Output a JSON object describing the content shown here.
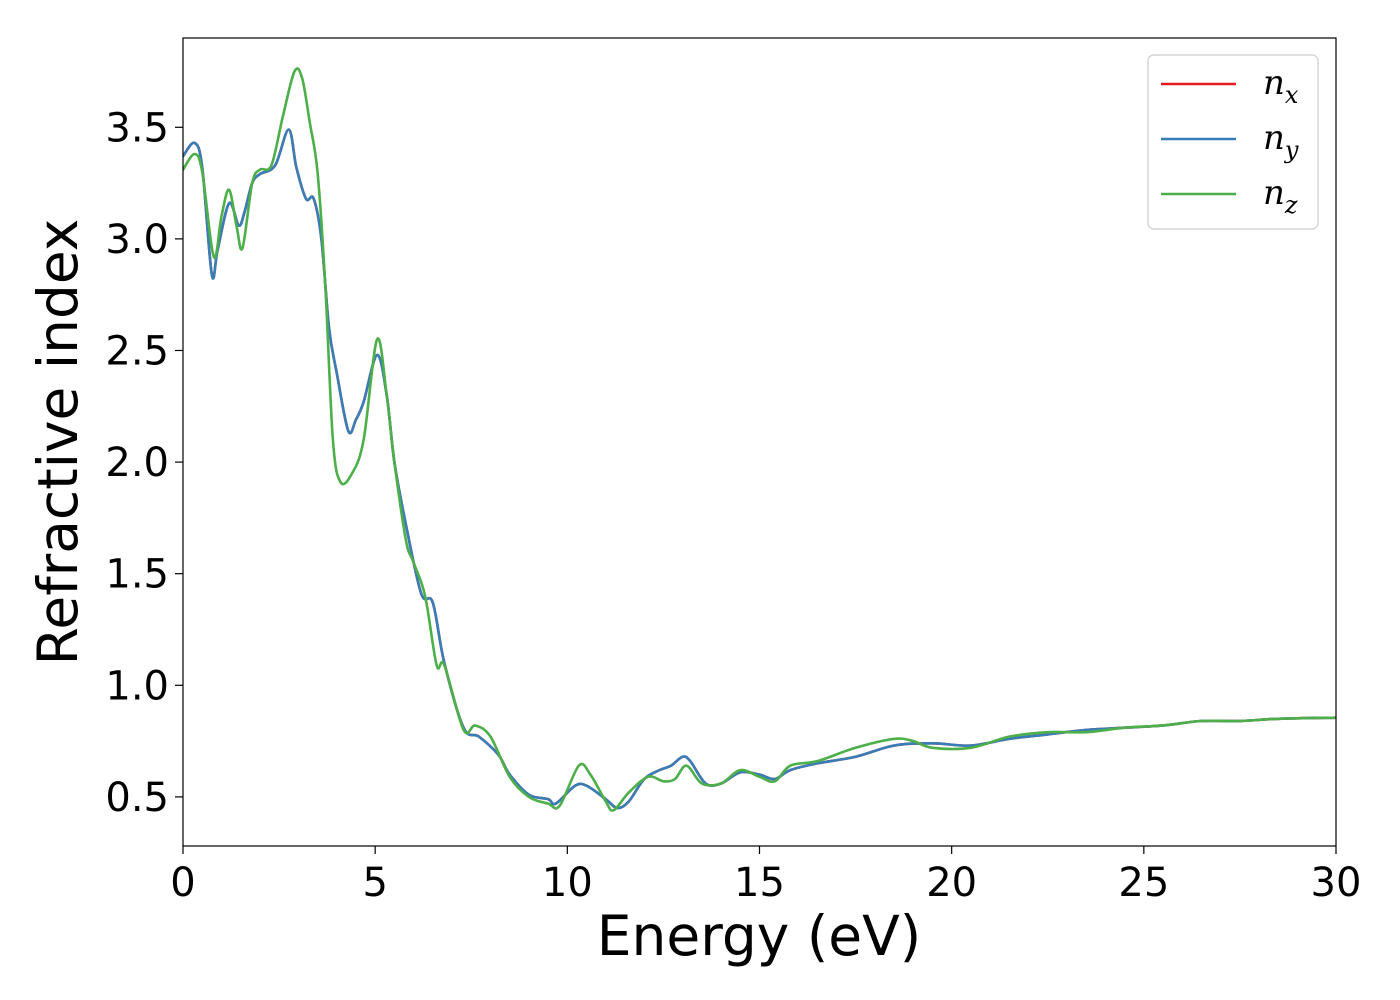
{
  "chart_data": {
    "type": "line",
    "xlabel": "Energy (eV)",
    "ylabel": "Refractive index",
    "xlim": [
      0,
      30
    ],
    "ylim": [
      0.28,
      3.9
    ],
    "xticks": [
      0,
      5,
      10,
      15,
      20,
      25,
      30
    ],
    "xtick_labels": [
      "0",
      "5",
      "10",
      "15",
      "20",
      "25",
      "30"
    ],
    "yticks": [
      0.5,
      1.0,
      1.5,
      2.0,
      2.5,
      3.0,
      3.5
    ],
    "ytick_labels": [
      "0.5",
      "1.0",
      "1.5",
      "2.0",
      "2.5",
      "3.0",
      "3.5"
    ],
    "grid": false,
    "legend_position": "top-right",
    "series": [
      {
        "name": "n",
        "subscript": "x",
        "color": "#e41a1c",
        "points": [
          [
            0,
            3.37
          ],
          [
            0.3,
            3.43
          ],
          [
            0.5,
            3.32
          ],
          [
            0.75,
            2.84
          ],
          [
            0.9,
            2.95
          ],
          [
            1.2,
            3.16
          ],
          [
            1.45,
            3.06
          ],
          [
            1.6,
            3.12
          ],
          [
            1.8,
            3.25
          ],
          [
            2.0,
            3.29
          ],
          [
            2.4,
            3.33
          ],
          [
            2.75,
            3.49
          ],
          [
            2.95,
            3.32
          ],
          [
            3.2,
            3.18
          ],
          [
            3.4,
            3.18
          ],
          [
            3.6,
            3.0
          ],
          [
            3.8,
            2.6
          ],
          [
            4.0,
            2.4
          ],
          [
            4.3,
            2.14
          ],
          [
            4.5,
            2.19
          ],
          [
            4.7,
            2.27
          ],
          [
            5.05,
            2.48
          ],
          [
            5.3,
            2.3
          ],
          [
            5.5,
            2.0
          ],
          [
            5.8,
            1.72
          ],
          [
            6.2,
            1.41
          ],
          [
            6.5,
            1.37
          ],
          [
            6.8,
            1.1
          ],
          [
            7.3,
            0.81
          ],
          [
            7.7,
            0.77
          ],
          [
            8.2,
            0.69
          ],
          [
            8.5,
            0.6
          ],
          [
            9.0,
            0.51
          ],
          [
            9.5,
            0.49
          ],
          [
            9.7,
            0.47
          ],
          [
            10.2,
            0.55
          ],
          [
            10.5,
            0.55
          ],
          [
            11.0,
            0.49
          ],
          [
            11.3,
            0.45
          ],
          [
            11.6,
            0.48
          ],
          [
            12.0,
            0.58
          ],
          [
            12.4,
            0.62
          ],
          [
            12.7,
            0.64
          ],
          [
            13.0,
            0.68
          ],
          [
            13.2,
            0.66
          ],
          [
            13.6,
            0.56
          ],
          [
            14.0,
            0.56
          ],
          [
            14.5,
            0.61
          ],
          [
            15.0,
            0.6
          ],
          [
            15.4,
            0.58
          ],
          [
            15.8,
            0.62
          ],
          [
            16.5,
            0.65
          ],
          [
            17.5,
            0.68
          ],
          [
            18.5,
            0.73
          ],
          [
            19.5,
            0.74
          ],
          [
            20.5,
            0.73
          ],
          [
            21.5,
            0.76
          ],
          [
            22.5,
            0.78
          ],
          [
            23.5,
            0.8
          ],
          [
            24.5,
            0.81
          ],
          [
            25.5,
            0.82
          ],
          [
            26.5,
            0.84
          ],
          [
            27.5,
            0.84
          ],
          [
            28.5,
            0.85
          ],
          [
            30.0,
            0.855
          ]
        ]
      },
      {
        "name": "n",
        "subscript": "y",
        "color": "#377eb8",
        "points": [
          [
            0,
            3.37
          ],
          [
            0.3,
            3.43
          ],
          [
            0.5,
            3.32
          ],
          [
            0.75,
            2.84
          ],
          [
            0.9,
            2.95
          ],
          [
            1.2,
            3.16
          ],
          [
            1.45,
            3.06
          ],
          [
            1.6,
            3.12
          ],
          [
            1.8,
            3.25
          ],
          [
            2.0,
            3.29
          ],
          [
            2.4,
            3.33
          ],
          [
            2.75,
            3.49
          ],
          [
            2.95,
            3.32
          ],
          [
            3.2,
            3.18
          ],
          [
            3.4,
            3.18
          ],
          [
            3.6,
            3.0
          ],
          [
            3.8,
            2.6
          ],
          [
            4.0,
            2.4
          ],
          [
            4.3,
            2.14
          ],
          [
            4.5,
            2.19
          ],
          [
            4.7,
            2.27
          ],
          [
            5.05,
            2.48
          ],
          [
            5.3,
            2.3
          ],
          [
            5.5,
            2.0
          ],
          [
            5.8,
            1.72
          ],
          [
            6.2,
            1.41
          ],
          [
            6.5,
            1.37
          ],
          [
            6.8,
            1.1
          ],
          [
            7.3,
            0.81
          ],
          [
            7.7,
            0.77
          ],
          [
            8.2,
            0.69
          ],
          [
            8.5,
            0.6
          ],
          [
            9.0,
            0.51
          ],
          [
            9.5,
            0.49
          ],
          [
            9.7,
            0.47
          ],
          [
            10.2,
            0.55
          ],
          [
            10.5,
            0.55
          ],
          [
            11.0,
            0.49
          ],
          [
            11.3,
            0.45
          ],
          [
            11.6,
            0.48
          ],
          [
            12.0,
            0.58
          ],
          [
            12.4,
            0.62
          ],
          [
            12.7,
            0.64
          ],
          [
            13.0,
            0.68
          ],
          [
            13.2,
            0.66
          ],
          [
            13.6,
            0.56
          ],
          [
            14.0,
            0.56
          ],
          [
            14.5,
            0.61
          ],
          [
            15.0,
            0.6
          ],
          [
            15.4,
            0.58
          ],
          [
            15.8,
            0.62
          ],
          [
            16.5,
            0.65
          ],
          [
            17.5,
            0.68
          ],
          [
            18.5,
            0.73
          ],
          [
            19.5,
            0.74
          ],
          [
            20.5,
            0.73
          ],
          [
            21.5,
            0.76
          ],
          [
            22.5,
            0.78
          ],
          [
            23.5,
            0.8
          ],
          [
            24.5,
            0.81
          ],
          [
            25.5,
            0.82
          ],
          [
            26.5,
            0.84
          ],
          [
            27.5,
            0.84
          ],
          [
            28.5,
            0.85
          ],
          [
            30.0,
            0.855
          ]
        ]
      },
      {
        "name": "n",
        "subscript": "z",
        "color": "#4daf4a",
        "points": [
          [
            0,
            3.31
          ],
          [
            0.3,
            3.38
          ],
          [
            0.5,
            3.3
          ],
          [
            0.8,
            2.92
          ],
          [
            1.0,
            3.1
          ],
          [
            1.2,
            3.22
          ],
          [
            1.4,
            3.05
          ],
          [
            1.55,
            2.96
          ],
          [
            1.8,
            3.25
          ],
          [
            2.0,
            3.31
          ],
          [
            2.3,
            3.33
          ],
          [
            2.6,
            3.55
          ],
          [
            2.9,
            3.75
          ],
          [
            3.1,
            3.72
          ],
          [
            3.3,
            3.52
          ],
          [
            3.5,
            3.3
          ],
          [
            3.7,
            2.8
          ],
          [
            3.9,
            2.1
          ],
          [
            4.1,
            1.91
          ],
          [
            4.4,
            1.95
          ],
          [
            4.7,
            2.1
          ],
          [
            5.05,
            2.55
          ],
          [
            5.3,
            2.3
          ],
          [
            5.5,
            2.0
          ],
          [
            5.8,
            1.65
          ],
          [
            6.0,
            1.55
          ],
          [
            6.3,
            1.4
          ],
          [
            6.6,
            1.09
          ],
          [
            6.8,
            1.09
          ],
          [
            7.3,
            0.8
          ],
          [
            7.6,
            0.82
          ],
          [
            8.0,
            0.77
          ],
          [
            8.5,
            0.59
          ],
          [
            9.0,
            0.5
          ],
          [
            9.5,
            0.47
          ],
          [
            9.8,
            0.46
          ],
          [
            10.3,
            0.64
          ],
          [
            10.6,
            0.6
          ],
          [
            11.0,
            0.48
          ],
          [
            11.2,
            0.44
          ],
          [
            11.6,
            0.52
          ],
          [
            12.1,
            0.59
          ],
          [
            12.5,
            0.57
          ],
          [
            12.8,
            0.58
          ],
          [
            13.1,
            0.64
          ],
          [
            13.5,
            0.56
          ],
          [
            14.0,
            0.56
          ],
          [
            14.5,
            0.62
          ],
          [
            15.0,
            0.59
          ],
          [
            15.4,
            0.57
          ],
          [
            15.8,
            0.64
          ],
          [
            16.5,
            0.66
          ],
          [
            17.5,
            0.72
          ],
          [
            18.5,
            0.76
          ],
          [
            19.0,
            0.75
          ],
          [
            19.5,
            0.72
          ],
          [
            20.5,
            0.72
          ],
          [
            21.5,
            0.77
          ],
          [
            22.5,
            0.79
          ],
          [
            23.5,
            0.79
          ],
          [
            24.5,
            0.81
          ],
          [
            25.5,
            0.82
          ],
          [
            26.5,
            0.84
          ],
          [
            27.5,
            0.84
          ],
          [
            28.5,
            0.85
          ],
          [
            30.0,
            0.855
          ]
        ]
      }
    ]
  }
}
